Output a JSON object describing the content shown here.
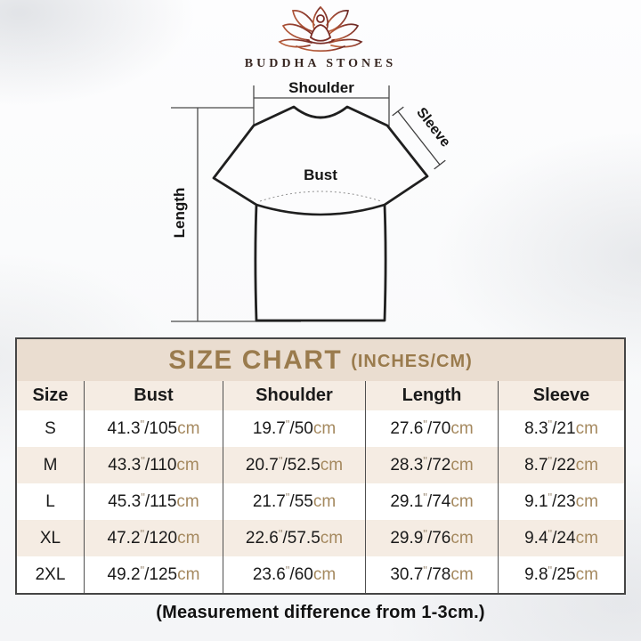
{
  "brand": {
    "name": "BUDDHA STONES"
  },
  "diagram": {
    "labels": {
      "shoulder": "Shoulder",
      "sleeve": "Sleeve",
      "bust": "Bust",
      "length": "Length"
    }
  },
  "size_chart": {
    "title": "SIZE CHART",
    "subtitle": "(INCHES/CM)",
    "columns": [
      "Size",
      "Bust",
      "Shoulder",
      "Length",
      "Sleeve"
    ],
    "unit_inch_mark": "\"",
    "unit_cm": "cm",
    "rows": [
      {
        "size": "S",
        "bust": {
          "in": "41.3",
          "cm": "105"
        },
        "shoulder": {
          "in": "19.7",
          "cm": "50"
        },
        "length": {
          "in": "27.6",
          "cm": "70"
        },
        "sleeve": {
          "in": "8.3",
          "cm": "21"
        }
      },
      {
        "size": "M",
        "bust": {
          "in": "43.3",
          "cm": "110"
        },
        "shoulder": {
          "in": "20.7",
          "cm": "52.5"
        },
        "length": {
          "in": "28.3",
          "cm": "72"
        },
        "sleeve": {
          "in": "8.7",
          "cm": "22"
        }
      },
      {
        "size": "L",
        "bust": {
          "in": "45.3",
          "cm": "115"
        },
        "shoulder": {
          "in": "21.7",
          "cm": "55"
        },
        "length": {
          "in": "29.1",
          "cm": "74"
        },
        "sleeve": {
          "in": "9.1",
          "cm": "23"
        }
      },
      {
        "size": "XL",
        "bust": {
          "in": "47.2",
          "cm": "120"
        },
        "shoulder": {
          "in": "22.6",
          "cm": "57.5"
        },
        "length": {
          "in": "29.9",
          "cm": "76"
        },
        "sleeve": {
          "in": "9.4",
          "cm": "24"
        }
      },
      {
        "size": "2XL",
        "bust": {
          "in": "49.2",
          "cm": "125"
        },
        "shoulder": {
          "in": "23.6",
          "cm": "60"
        },
        "length": {
          "in": "30.7",
          "cm": "78"
        },
        "sleeve": {
          "in": "9.8",
          "cm": "25"
        }
      }
    ]
  },
  "footer": {
    "note": "(Measurement difference from 1-3cm.)"
  },
  "colors": {
    "accent_gold": "#9a7b4d",
    "title_band_bg": "#eaddd0",
    "row_alt_bg": "#f5ece3",
    "unit_tan": "#a5895f",
    "logo_gradient_start": "#c2683f",
    "logo_gradient_end": "#6e2a25"
  }
}
